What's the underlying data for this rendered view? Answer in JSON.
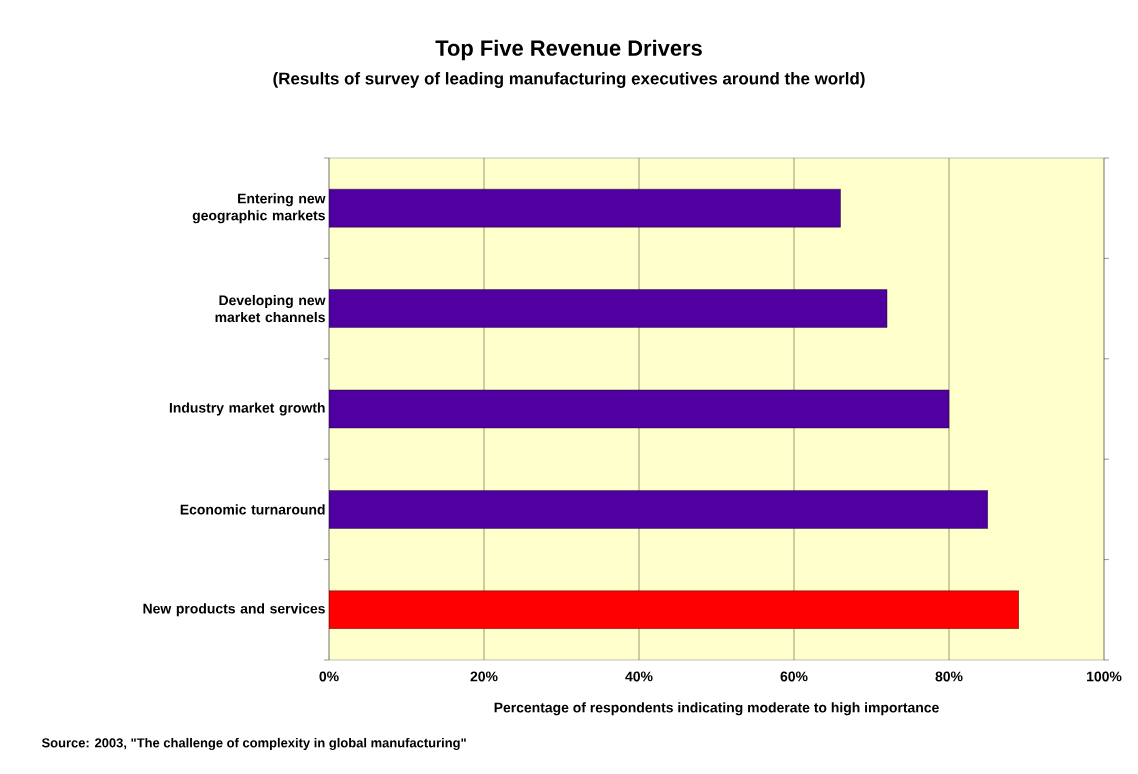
{
  "chart_data": {
    "type": "bar",
    "orientation": "horizontal",
    "title": "Top Five Revenue Drivers",
    "subtitle": "(Results of survey of leading manufacturing executives around the world)",
    "categories": [
      "Entering new geographic markets",
      "Developing new market channels",
      "Industry market growth",
      "Economic turnaround",
      "New products and services"
    ],
    "values": [
      66,
      72,
      80,
      85,
      89
    ],
    "colors": [
      "#5000a0",
      "#5000a0",
      "#5000a0",
      "#5000a0",
      "#ff0000"
    ],
    "xlabel": "Percentage of respondents indicating moderate to high importance",
    "xlim": [
      0,
      100
    ],
    "xticks": [
      {
        "value": 0,
        "label": "0%"
      },
      {
        "value": 20,
        "label": "20%"
      },
      {
        "value": 40,
        "label": "40%"
      },
      {
        "value": 60,
        "label": "60%"
      },
      {
        "value": 80,
        "label": "80%"
      },
      {
        "value": 100,
        "label": "100%"
      }
    ],
    "grid": "x",
    "annotations": [
      "Source: 2003, \"The challenge of complexity in global manufacturing\""
    ]
  }
}
